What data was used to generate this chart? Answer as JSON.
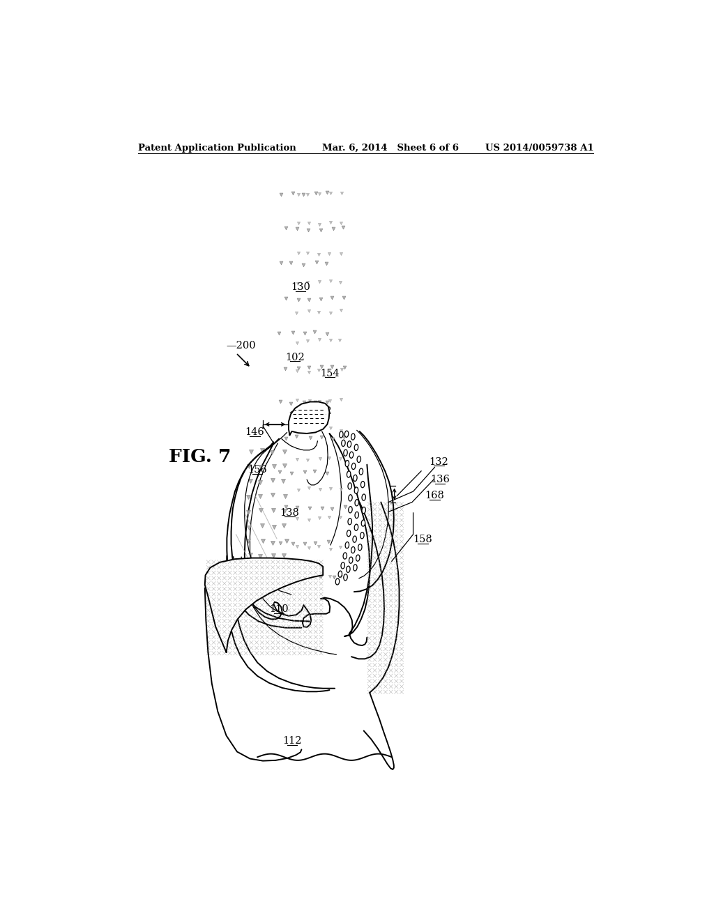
{
  "title_left": "Patent Application Publication",
  "title_mid": "Mar. 6, 2014   Sheet 6 of 6",
  "title_right": "US 2014/0059738 A1",
  "fig_label": "FIG. 7",
  "bg_color": "#ffffff",
  "line_color": "#000000",
  "lw_main": 1.4,
  "lw_thin": 0.9,
  "lw_hair": 0.6
}
